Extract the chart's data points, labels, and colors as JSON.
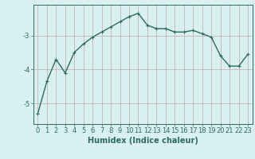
{
  "x": [
    0,
    1,
    2,
    3,
    4,
    5,
    6,
    7,
    8,
    9,
    10,
    11,
    12,
    13,
    14,
    15,
    16,
    17,
    18,
    19,
    20,
    21,
    22,
    23
  ],
  "y": [
    -5.3,
    -4.35,
    -3.7,
    -4.1,
    -3.5,
    -3.25,
    -3.05,
    -2.9,
    -2.75,
    -2.6,
    -2.45,
    -2.35,
    -2.7,
    -2.8,
    -2.8,
    -2.9,
    -2.9,
    -2.85,
    -2.95,
    -3.05,
    -3.6,
    -3.9,
    -3.9,
    -3.55
  ],
  "line_color": "#2e6b5e",
  "marker": "+",
  "markersize": 3,
  "linewidth": 1.0,
  "bg_color": "#d8f0f0",
  "xlabel": "Humidex (Indice chaleur)",
  "xlabel_fontsize": 7,
  "yticks": [
    -5,
    -4,
    -3
  ],
  "ylim": [
    -5.6,
    -2.1
  ],
  "xlim": [
    -0.5,
    23.5
  ],
  "tick_fontsize": 6,
  "grid_color": "#c8a8a8"
}
